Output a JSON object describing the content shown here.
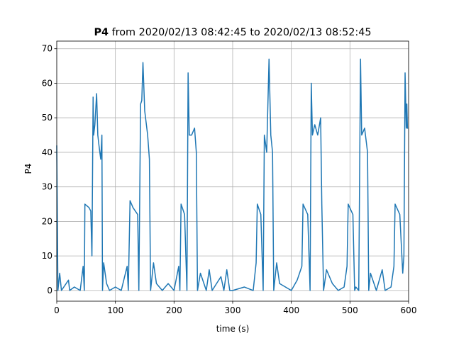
{
  "chart_data": {
    "type": "line",
    "title_parts": [
      "P4",
      "from 2020/02/13 08:42:45 to 2020/02/13 08:52:45"
    ],
    "xlabel": "time (s)",
    "ylabel": "P4",
    "x": [
      0,
      2,
      5,
      8,
      20,
      22,
      30,
      40,
      45,
      47,
      48,
      55,
      58,
      60,
      62,
      63,
      65,
      68,
      70,
      72,
      75,
      77,
      78,
      80,
      85,
      90,
      100,
      110,
      120,
      122,
      125,
      130,
      138,
      140,
      143,
      145,
      147,
      150,
      155,
      158,
      160,
      165,
      170,
      180,
      190,
      200,
      208,
      210,
      212,
      218,
      222,
      224,
      226,
      230,
      235,
      238,
      240,
      245,
      255,
      260,
      265,
      280,
      285,
      290,
      295,
      300,
      320,
      335,
      340,
      342,
      348,
      352,
      354,
      358,
      362,
      365,
      368,
      370,
      375,
      380,
      400,
      410,
      418,
      420,
      428,
      432,
      434,
      436,
      440,
      445,
      450,
      452,
      455,
      460,
      470,
      480,
      490,
      495,
      497,
      505,
      508,
      510,
      515,
      518,
      520,
      525,
      530,
      532,
      535,
      545,
      555,
      560,
      570,
      575,
      577,
      585,
      590,
      592,
      594,
      596,
      597,
      598,
      599
    ],
    "series": [
      {
        "name": "P4",
        "color": "#1f77b4",
        "values": [
          42,
          0,
          5,
          0,
          3,
          0,
          1,
          0,
          7,
          0,
          25,
          24,
          23,
          10,
          56,
          45,
          48,
          57,
          45,
          42,
          38,
          45,
          0,
          8,
          2,
          0,
          1,
          0,
          7,
          0,
          26,
          24,
          22,
          0,
          54,
          55,
          66,
          52,
          45,
          38,
          0,
          8,
          2,
          0,
          2,
          0,
          7,
          0,
          25,
          22,
          0,
          63,
          45,
          45,
          47,
          40,
          0,
          5,
          0,
          6,
          0,
          4,
          0,
          6,
          0,
          0,
          1,
          0,
          8,
          25,
          22,
          0,
          45,
          40,
          67,
          45,
          40,
          0,
          8,
          2,
          0,
          3,
          7,
          25,
          22,
          0,
          60,
          45,
          48,
          45,
          50,
          25,
          0,
          6,
          2,
          0,
          1,
          7,
          25,
          22,
          0,
          1,
          0,
          67,
          45,
          47,
          40,
          0,
          5,
          0,
          6,
          0,
          1,
          7,
          25,
          22,
          5,
          10,
          63,
          47,
          54,
          47,
          47
        ]
      }
    ],
    "xlim": [
      0,
      600
    ],
    "xticks": [
      0,
      100,
      200,
      300,
      400,
      500,
      600
    ],
    "ylim": [
      -3.1,
      72.2
    ],
    "yticks": [
      0,
      10,
      20,
      30,
      40,
      50,
      60,
      70
    ],
    "grid": true
  }
}
